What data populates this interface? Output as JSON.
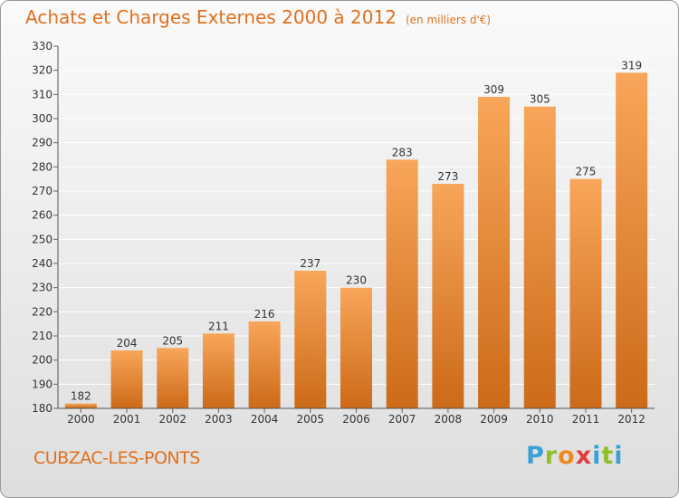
{
  "title": "Achats et Charges Externes 2000 à 2012",
  "unit": "(en milliers d'€)",
  "commune": "CUBZAC-LES-PONTS",
  "logo": {
    "text": "Proxiti",
    "letters": [
      "P",
      "r",
      "o",
      "x",
      "i",
      "t",
      "i"
    ],
    "colors": [
      "#3aa0d8",
      "#8fbf2a",
      "#f08a1c",
      "#e23c3c",
      "#3aa0d8",
      "#8fbf2a",
      "#3aa0d8"
    ]
  },
  "colors": {
    "accent": "#e0701e",
    "bar_top": "#f8a65a",
    "bar_bottom": "#cc6a18",
    "grid": "#ffffff",
    "label": "#333333"
  },
  "chart_data": {
    "type": "bar",
    "categories": [
      "2000",
      "2001",
      "2002",
      "2003",
      "2004",
      "2005",
      "2006",
      "2007",
      "2008",
      "2009",
      "2010",
      "2011",
      "2012"
    ],
    "values": [
      182,
      204,
      205,
      211,
      216,
      237,
      230,
      283,
      273,
      309,
      305,
      275,
      319
    ],
    "title": "Achats et Charges Externes 2000 à 2012",
    "xlabel": "",
    "ylabel": "",
    "ylim": [
      180,
      330
    ],
    "yticks": [
      180,
      190,
      200,
      210,
      220,
      230,
      240,
      250,
      260,
      270,
      280,
      290,
      300,
      310,
      320,
      330
    ],
    "grid": true,
    "data_labels": true
  }
}
